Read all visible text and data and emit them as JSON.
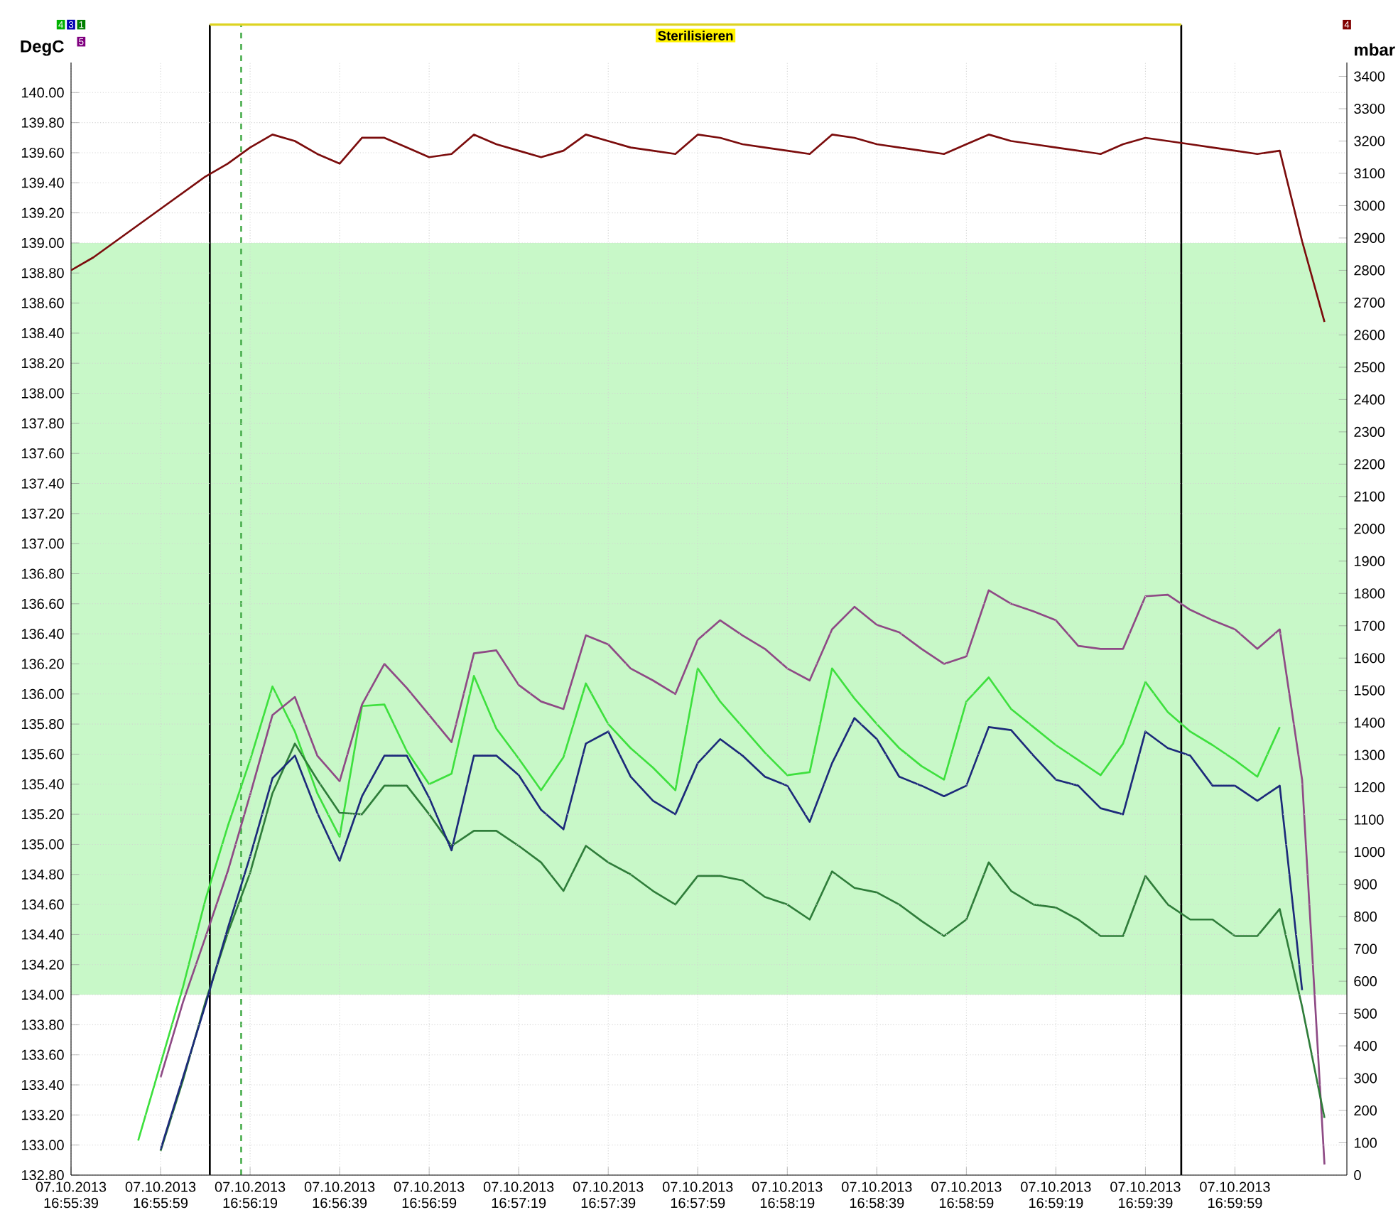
{
  "chart_data": {
    "type": "line",
    "ylabel": "DegC",
    "y2label": "mbar",
    "annotations": [
      "Sterilisieren",
      "4",
      "3",
      "1",
      "5",
      "4"
    ],
    "x": [
      "2013-10-07T16:55:39",
      "2013-10-07T16:55:44",
      "2013-10-07T16:55:49",
      "2013-10-07T16:55:54",
      "2013-10-07T16:55:59",
      "2013-10-07T16:56:04",
      "2013-10-07T16:56:09",
      "2013-10-07T16:56:14",
      "2013-10-07T16:56:19",
      "2013-10-07T16:56:24",
      "2013-10-07T16:56:29",
      "2013-10-07T16:56:34",
      "2013-10-07T16:56:39",
      "2013-10-07T16:56:44",
      "2013-10-07T16:56:49",
      "2013-10-07T16:56:54",
      "2013-10-07T16:56:59",
      "2013-10-07T16:57:04",
      "2013-10-07T16:57:09",
      "2013-10-07T16:57:14",
      "2013-10-07T16:57:19",
      "2013-10-07T16:57:24",
      "2013-10-07T16:57:29",
      "2013-10-07T16:57:34",
      "2013-10-07T16:57:39",
      "2013-10-07T16:57:44",
      "2013-10-07T16:57:49",
      "2013-10-07T16:57:54",
      "2013-10-07T16:57:59",
      "2013-10-07T16:58:04",
      "2013-10-07T16:58:09",
      "2013-10-07T16:58:14",
      "2013-10-07T16:58:19",
      "2013-10-07T16:58:24",
      "2013-10-07T16:58:29",
      "2013-10-07T16:58:34",
      "2013-10-07T16:58:39",
      "2013-10-07T16:58:44",
      "2013-10-07T16:58:49",
      "2013-10-07T16:58:54",
      "2013-10-07T16:58:59",
      "2013-10-07T16:59:04",
      "2013-10-07T16:59:09",
      "2013-10-07T16:59:14",
      "2013-10-07T16:59:19",
      "2013-10-07T16:59:24",
      "2013-10-07T16:59:29",
      "2013-10-07T16:59:34",
      "2013-10-07T16:59:39",
      "2013-10-07T16:59:44",
      "2013-10-07T16:59:49",
      "2013-10-07T16:59:54",
      "2013-10-07T16:59:59",
      "2013-10-07T17:00:04",
      "2013-10-07T17:00:09",
      "2013-10-07T17:00:14",
      "2013-10-07T17:00:19"
    ],
    "series": [
      {
        "color": "#3ee03e",
        "values": [
          null,
          null,
          null,
          133.03,
          133.54,
          134.05,
          134.63,
          135.12,
          135.56,
          136.05,
          135.75,
          135.34,
          135.05,
          135.92,
          135.93,
          135.62,
          135.4,
          135.47,
          136.12,
          135.77,
          135.57,
          135.36,
          135.58,
          136.07,
          135.8,
          135.64,
          135.51,
          135.36,
          136.17,
          135.95,
          135.78,
          135.61,
          135.46,
          135.48,
          136.17,
          135.97,
          135.8,
          135.64,
          135.52,
          135.43,
          135.95,
          136.11,
          135.9,
          135.78,
          135.66,
          135.56,
          135.46,
          135.67,
          136.08,
          135.88,
          135.75,
          135.66,
          135.56,
          135.45,
          135.78,
          null,
          null
        ]
      },
      {
        "color": "#8e4a85",
        "values": [
          null,
          null,
          null,
          null,
          133.45,
          133.95,
          134.38,
          134.82,
          135.33,
          135.86,
          135.98,
          135.59,
          135.42,
          135.93,
          136.2,
          136.04,
          135.86,
          135.68,
          136.27,
          136.29,
          136.06,
          135.95,
          135.9,
          136.39,
          136.33,
          136.17,
          136.09,
          136.0,
          136.36,
          136.49,
          136.39,
          136.3,
          136.17,
          136.09,
          136.43,
          136.58,
          136.46,
          136.41,
          136.3,
          136.2,
          136.25,
          136.69,
          136.6,
          136.55,
          136.49,
          136.32,
          136.3,
          136.3,
          136.65,
          136.66,
          136.56,
          136.49,
          136.43,
          136.3,
          136.43,
          135.43,
          132.87
        ]
      },
      {
        "color": "#2f7d3a",
        "values": [
          null,
          null,
          null,
          null,
          132.96,
          133.43,
          133.95,
          134.41,
          134.81,
          135.34,
          135.67,
          135.43,
          135.21,
          135.2,
          135.39,
          135.39,
          135.2,
          134.99,
          135.09,
          135.09,
          134.99,
          134.88,
          134.69,
          134.99,
          134.88,
          134.8,
          134.69,
          134.6,
          134.79,
          134.79,
          134.76,
          134.65,
          134.6,
          134.5,
          134.82,
          134.71,
          134.68,
          134.6,
          134.49,
          134.39,
          134.5,
          134.88,
          134.69,
          134.6,
          134.58,
          134.5,
          134.39,
          134.39,
          134.79,
          134.6,
          134.5,
          134.5,
          134.39,
          134.39,
          134.57,
          133.92,
          133.18
        ]
      },
      {
        "color": "#1c2a7a",
        "values": [
          null,
          null,
          null,
          null,
          132.97,
          133.45,
          133.93,
          134.44,
          134.92,
          135.44,
          135.59,
          135.21,
          134.89,
          135.32,
          135.59,
          135.59,
          135.31,
          134.96,
          135.59,
          135.59,
          135.46,
          135.23,
          135.1,
          135.67,
          135.75,
          135.45,
          135.29,
          135.2,
          135.54,
          135.7,
          135.59,
          135.45,
          135.39,
          135.15,
          135.54,
          135.84,
          135.7,
          135.45,
          135.39,
          135.32,
          135.39,
          135.78,
          135.76,
          135.59,
          135.43,
          135.39,
          135.24,
          135.2,
          135.75,
          135.64,
          135.59,
          135.39,
          135.39,
          135.29,
          135.39,
          134.03,
          null
        ]
      },
      {
        "color": "#7b0c0c",
        "axis": "y2",
        "values": [
          2800,
          2840,
          2890,
          2940,
          2990,
          3040,
          3090,
          3130,
          3180,
          3220,
          3200,
          3160,
          3130,
          3210,
          3210,
          3180,
          3150,
          3160,
          3220,
          3190,
          3170,
          3150,
          3170,
          3220,
          3200,
          3180,
          3170,
          3160,
          3220,
          3210,
          3190,
          3180,
          3170,
          3160,
          3220,
          3210,
          3190,
          3180,
          3170,
          3160,
          3190,
          3220,
          3200,
          3190,
          3180,
          3170,
          3160,
          3190,
          3210,
          3200,
          3190,
          3180,
          3170,
          3160,
          3170,
          2890,
          2640
        ]
      }
    ],
    "xlim": [
      "2013-10-07T16:55:39",
      "2013-10-07T17:00:24"
    ],
    "xticks": [
      {
        "value": "2013-10-07T16:55:39",
        "label": "07.10.2013 16:55:39"
      },
      {
        "value": "2013-10-07T16:55:59",
        "label": "07.10.2013 16:55:59"
      },
      {
        "value": "2013-10-07T16:56:19",
        "label": "07.10.2013 16:56:19"
      },
      {
        "value": "2013-10-07T16:56:39",
        "label": "07.10.2013 16:56:39"
      },
      {
        "value": "2013-10-07T16:56:59",
        "label": "07.10.2013 16:56:59"
      },
      {
        "value": "2013-10-07T16:57:19",
        "label": "07.10.2013 16:57:19"
      },
      {
        "value": "2013-10-07T16:57:39",
        "label": "07.10.2013 16:57:39"
      },
      {
        "value": "2013-10-07T16:57:59",
        "label": "07.10.2013 16:57:59"
      },
      {
        "value": "2013-10-07T16:58:19",
        "label": "07.10.2013 16:58:19"
      },
      {
        "value": "2013-10-07T16:58:39",
        "label": "07.10.2013 16:58:39"
      },
      {
        "value": "2013-10-07T16:58:59",
        "label": "07.10.2013 16:58:59"
      },
      {
        "value": "2013-10-07T16:59:19",
        "label": "07.10.2013 16:59:19"
      },
      {
        "value": "2013-10-07T16:59:39",
        "label": "07.10.2013 16:59:39"
      },
      {
        "value": "2013-10-07T16:59:59",
        "label": "07.10.2013 16:59:59"
      }
    ],
    "ylim": [
      132.8,
      140.2
    ],
    "yticks": [
      {
        "value": 132.8,
        "label": "132.80"
      },
      {
        "value": 133,
        "label": "133.00"
      },
      {
        "value": 133.2,
        "label": "133.20"
      },
      {
        "value": 133.4,
        "label": "133.40"
      },
      {
        "value": 133.6,
        "label": "133.60"
      },
      {
        "value": 133.8,
        "label": "133.80"
      },
      {
        "value": 134,
        "label": "134.00"
      },
      {
        "value": 134.2,
        "label": "134.20"
      },
      {
        "value": 134.4,
        "label": "134.40"
      },
      {
        "value": 134.6,
        "label": "134.60"
      },
      {
        "value": 134.8,
        "label": "134.80"
      },
      {
        "value": 135,
        "label": "135.00"
      },
      {
        "value": 135.2,
        "label": "135.20"
      },
      {
        "value": 135.4,
        "label": "135.40"
      },
      {
        "value": 135.6,
        "label": "135.60"
      },
      {
        "value": 135.8,
        "label": "135.80"
      },
      {
        "value": 136,
        "label": "136.00"
      },
      {
        "value": 136.2,
        "label": "136.20"
      },
      {
        "value": 136.4,
        "label": "136.40"
      },
      {
        "value": 136.6,
        "label": "136.60"
      },
      {
        "value": 136.8,
        "label": "136.80"
      },
      {
        "value": 137,
        "label": "137.00"
      },
      {
        "value": 137.2,
        "label": "137.20"
      },
      {
        "value": 137.4,
        "label": "137.40"
      },
      {
        "value": 137.6,
        "label": "137.60"
      },
      {
        "value": 137.8,
        "label": "137.80"
      },
      {
        "value": 138,
        "label": "138.00"
      },
      {
        "value": 138.2,
        "label": "138.20"
      },
      {
        "value": 138.4,
        "label": "138.40"
      },
      {
        "value": 138.6,
        "label": "138.60"
      },
      {
        "value": 138.8,
        "label": "138.80"
      },
      {
        "value": 139,
        "label": "139.00"
      },
      {
        "value": 139.2,
        "label": "139.20"
      },
      {
        "value": 139.4,
        "label": "139.40"
      },
      {
        "value": 139.6,
        "label": "139.60"
      },
      {
        "value": 139.8,
        "label": "139.80"
      },
      {
        "value": 140,
        "label": "140.00"
      }
    ],
    "y2lim": [
      0,
      3443
    ],
    "y2ticks": [
      0,
      100,
      200,
      300,
      400,
      500,
      600,
      700,
      800,
      900,
      1000,
      1100,
      1200,
      1300,
      1400,
      1500,
      1600,
      1700,
      1800,
      1900,
      2000,
      2100,
      2200,
      2300,
      2400,
      2500,
      2600,
      2700,
      2800,
      2900,
      3000,
      3100,
      3200,
      3300,
      3400
    ],
    "bands": [
      {
        "axis": "y",
        "from": 134,
        "to": 139,
        "color": "#c8f8c8"
      }
    ],
    "ref_lines": [
      {
        "axis": "x",
        "value": "2013-10-07T16:56:10",
        "color": "#000000"
      },
      {
        "axis": "x",
        "value": "2013-10-07T16:56:17",
        "color": "#4caf50",
        "line_style": "dashed"
      },
      {
        "axis": "x",
        "value": "2013-10-07T16:59:47",
        "color": "#000000"
      }
    ],
    "grid": true
  }
}
